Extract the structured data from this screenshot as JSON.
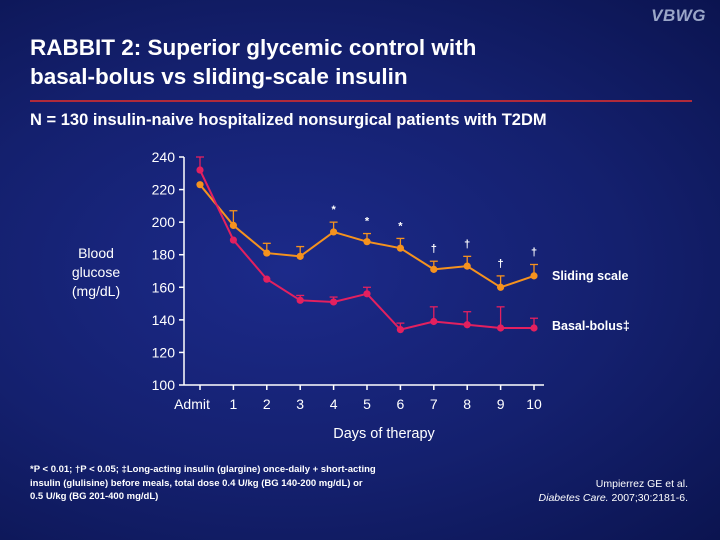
{
  "logo": "VBWG",
  "title_line1": "RABBIT 2: Superior glycemic control with",
  "title_line2": "basal-bolus vs sliding-scale insulin",
  "subtitle": "N = 130 insulin-naive hospitalized nonsurgical patients with T2DM",
  "chart_data": {
    "type": "line",
    "x": [
      "Admit",
      "1",
      "2",
      "3",
      "4",
      "5",
      "6",
      "7",
      "8",
      "9",
      "10"
    ],
    "xlabel": "Days of therapy",
    "ylabel_lines": [
      "Blood",
      "glucose",
      "(mg/dL)"
    ],
    "ylim": [
      100,
      240
    ],
    "yticks": [
      100,
      120,
      140,
      160,
      180,
      200,
      220,
      240
    ],
    "grid": false,
    "series": [
      {
        "name": "Sliding scale",
        "color": "#f5921e",
        "values": [
          223,
          198,
          181,
          179,
          194,
          188,
          184,
          171,
          173,
          160,
          167
        ],
        "error_upper": [
          0,
          9,
          6,
          6,
          6,
          5,
          6,
          5,
          6,
          7,
          7
        ],
        "error_lower": [
          0,
          0,
          0,
          0,
          0,
          0,
          0,
          0,
          0,
          0,
          0
        ],
        "significance": [
          "",
          "",
          "",
          "",
          "*",
          "*",
          "*",
          "†",
          "†",
          "†",
          "†"
        ]
      },
      {
        "name": "Basal-bolus‡",
        "color": "#e3205f",
        "values": [
          232,
          189,
          165,
          152,
          151,
          156,
          134,
          139,
          137,
          135,
          135
        ],
        "error_upper": [
          8,
          0,
          0,
          3,
          3,
          4,
          4,
          9,
          8,
          13,
          6
        ],
        "error_lower": [
          0,
          0,
          0,
          0,
          0,
          0,
          0,
          0,
          0,
          0,
          0
        ],
        "significance": [
          "",
          "",
          "",
          "",
          "",
          "",
          "",
          "",
          "",
          "",
          ""
        ]
      }
    ]
  },
  "footnote": {
    "line1": "*P < 0.01; †P < 0.05; ‡Long-acting insulin (glargine) once-daily + short-acting",
    "line2": "insulin (glulisine) before meals, total dose 0.4 U/kg (BG 140-200 mg/dL) or",
    "line3": "0.5 U/kg (BG 201-400 mg/dL)"
  },
  "citation": {
    "authors": "Umpierrez GE et al.",
    "journal": "Diabetes Care.",
    "ref": " 2007;30:2181-6."
  }
}
